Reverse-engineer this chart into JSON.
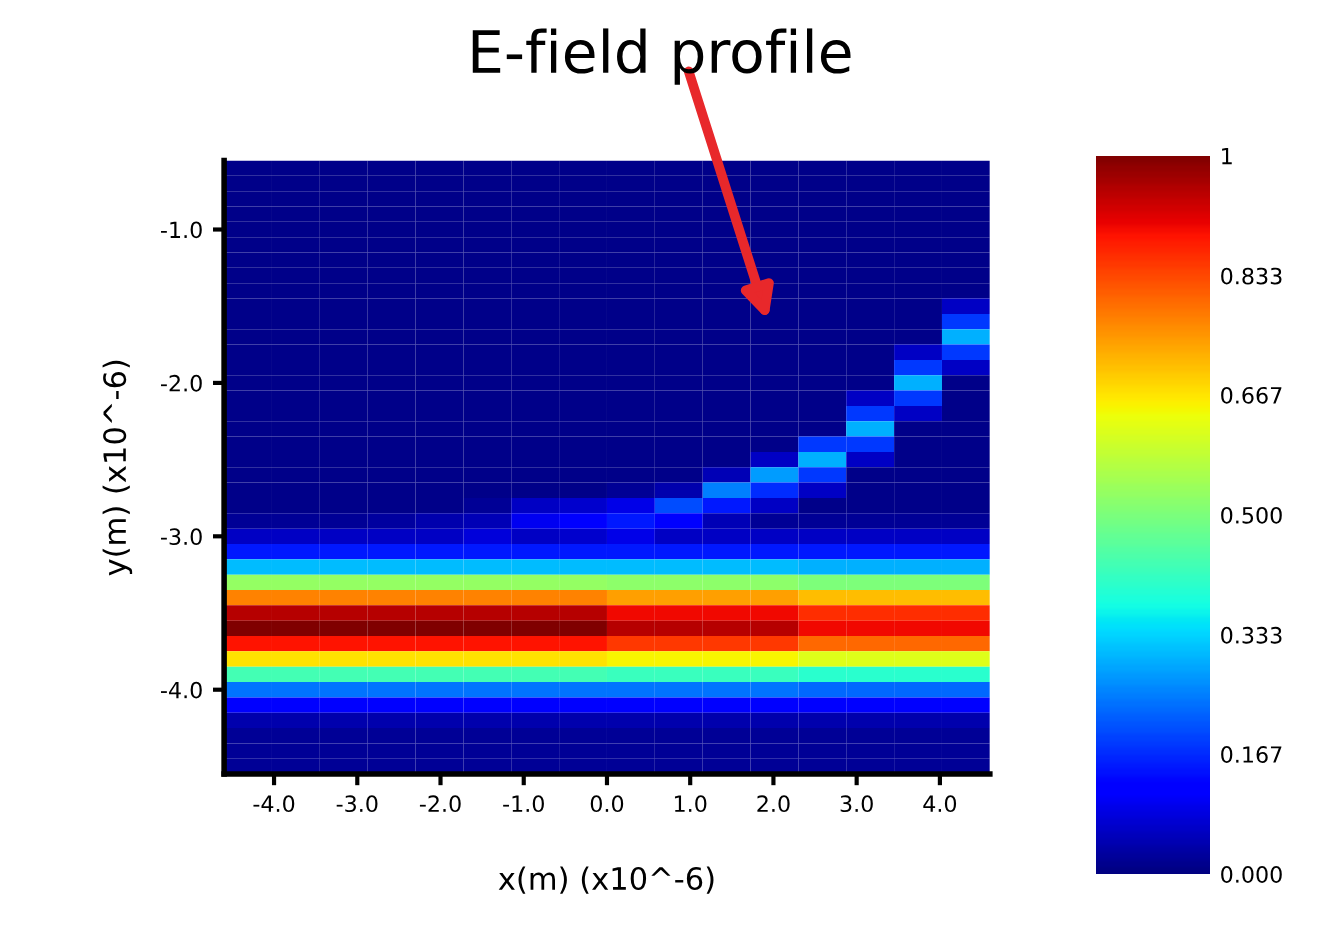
{
  "chart_data": {
    "type": "heatmap",
    "xlabel": "x(m) (x10^-6)",
    "ylabel": "y(m) (x10^-6)",
    "xlim": [
      -4.6,
      4.6
    ],
    "ylim": [
      -4.55,
      -0.55
    ],
    "xticks": [
      {
        "value": -4.0,
        "label": "-4.0"
      },
      {
        "value": -3.0,
        "label": "-3.0"
      },
      {
        "value": -2.0,
        "label": "-2.0"
      },
      {
        "value": -1.0,
        "label": "-1.0"
      },
      {
        "value": 0.0,
        "label": "0.0"
      },
      {
        "value": 1.0,
        "label": "1.0"
      },
      {
        "value": 2.0,
        "label": "2.0"
      },
      {
        "value": 3.0,
        "label": "3.0"
      },
      {
        "value": 4.0,
        "label": "4.0"
      }
    ],
    "yticks": [
      {
        "value": -1.0,
        "label": "-1.0"
      },
      {
        "value": -2.0,
        "label": "-2.0"
      },
      {
        "value": -3.0,
        "label": "-3.0"
      },
      {
        "value": -4.0,
        "label": "-4.0"
      }
    ],
    "clim": [
      0,
      1
    ],
    "cticks": [
      {
        "value": 0,
        "label": "0.000"
      },
      {
        "value": 0.167,
        "label": "0.167"
      },
      {
        "value": 0.333,
        "label": "0.333"
      },
      {
        "value": 0.5,
        "label": "0.500"
      },
      {
        "value": 0.667,
        "label": "0.667"
      },
      {
        "value": 0.833,
        "label": "0.833"
      },
      {
        "value": 1,
        "label": "1"
      }
    ],
    "annotations": [
      "E-field profile"
    ],
    "cells": [
      [
        0.01,
        0.01,
        0.01,
        0.01,
        0.01,
        0.01,
        0.01,
        0.01,
        0.01,
        0.01,
        0.01,
        0.01,
        0.01,
        0.01,
        0.01,
        0.01
      ],
      [
        0.01,
        0.01,
        0.01,
        0.01,
        0.01,
        0.01,
        0.01,
        0.01,
        0.01,
        0.01,
        0.01,
        0.01,
        0.01,
        0.01,
        0.01,
        0.01
      ],
      [
        0.01,
        0.01,
        0.01,
        0.01,
        0.01,
        0.01,
        0.01,
        0.01,
        0.01,
        0.01,
        0.01,
        0.01,
        0.01,
        0.01,
        0.01,
        0.01
      ],
      [
        0.01,
        0.01,
        0.01,
        0.01,
        0.01,
        0.01,
        0.01,
        0.01,
        0.01,
        0.01,
        0.01,
        0.01,
        0.01,
        0.01,
        0.01,
        0.01
      ],
      [
        0.01,
        0.01,
        0.01,
        0.01,
        0.01,
        0.01,
        0.01,
        0.01,
        0.01,
        0.01,
        0.01,
        0.01,
        0.01,
        0.01,
        0.01,
        0.01
      ],
      [
        0.01,
        0.01,
        0.01,
        0.01,
        0.01,
        0.01,
        0.01,
        0.01,
        0.01,
        0.01,
        0.01,
        0.01,
        0.01,
        0.01,
        0.01,
        0.01
      ],
      [
        0.01,
        0.01,
        0.01,
        0.01,
        0.01,
        0.01,
        0.01,
        0.01,
        0.01,
        0.01,
        0.01,
        0.01,
        0.01,
        0.01,
        0.01,
        0.01
      ],
      [
        0.01,
        0.01,
        0.01,
        0.01,
        0.01,
        0.01,
        0.01,
        0.01,
        0.01,
        0.01,
        0.01,
        0.01,
        0.01,
        0.01,
        0.01,
        0.01
      ],
      [
        0.01,
        0.01,
        0.01,
        0.01,
        0.01,
        0.01,
        0.01,
        0.01,
        0.01,
        0.01,
        0.01,
        0.01,
        0.01,
        0.01,
        0.01,
        0.01
      ],
      [
        0.01,
        0.01,
        0.01,
        0.01,
        0.01,
        0.01,
        0.01,
        0.01,
        0.01,
        0.01,
        0.01,
        0.01,
        0.01,
        0.01,
        0.01,
        0.06
      ],
      [
        0.01,
        0.01,
        0.01,
        0.01,
        0.01,
        0.01,
        0.01,
        0.01,
        0.01,
        0.01,
        0.01,
        0.01,
        0.01,
        0.01,
        0.01,
        0.18
      ],
      [
        0.01,
        0.01,
        0.01,
        0.01,
        0.01,
        0.01,
        0.01,
        0.01,
        0.01,
        0.01,
        0.01,
        0.01,
        0.01,
        0.01,
        0.01,
        0.3
      ],
      [
        0.01,
        0.01,
        0.01,
        0.01,
        0.01,
        0.01,
        0.01,
        0.01,
        0.01,
        0.01,
        0.01,
        0.01,
        0.01,
        0.01,
        0.06,
        0.18
      ],
      [
        0.01,
        0.01,
        0.01,
        0.01,
        0.01,
        0.01,
        0.01,
        0.01,
        0.01,
        0.01,
        0.01,
        0.01,
        0.01,
        0.01,
        0.18,
        0.06
      ],
      [
        0.01,
        0.01,
        0.01,
        0.01,
        0.01,
        0.01,
        0.01,
        0.01,
        0.01,
        0.01,
        0.01,
        0.01,
        0.01,
        0.01,
        0.3,
        0.01
      ],
      [
        0.01,
        0.01,
        0.01,
        0.01,
        0.01,
        0.01,
        0.01,
        0.01,
        0.01,
        0.01,
        0.01,
        0.01,
        0.01,
        0.06,
        0.18,
        0.01
      ],
      [
        0.01,
        0.01,
        0.01,
        0.01,
        0.01,
        0.01,
        0.01,
        0.01,
        0.01,
        0.01,
        0.01,
        0.01,
        0.01,
        0.18,
        0.06,
        0.01
      ],
      [
        0.01,
        0.01,
        0.01,
        0.01,
        0.01,
        0.01,
        0.01,
        0.01,
        0.01,
        0.01,
        0.01,
        0.01,
        0.01,
        0.3,
        0.01,
        0.01
      ],
      [
        0.01,
        0.01,
        0.01,
        0.01,
        0.01,
        0.01,
        0.01,
        0.01,
        0.01,
        0.01,
        0.01,
        0.01,
        0.18,
        0.18,
        0.01,
        0.01
      ],
      [
        0.01,
        0.01,
        0.01,
        0.01,
        0.01,
        0.01,
        0.01,
        0.01,
        0.01,
        0.01,
        0.01,
        0.06,
        0.3,
        0.06,
        0.01,
        0.01
      ],
      [
        0.01,
        0.01,
        0.01,
        0.01,
        0.01,
        0.01,
        0.01,
        0.01,
        0.01,
        0.01,
        0.05,
        0.28,
        0.18,
        0.01,
        0.01,
        0.01
      ],
      [
        0.01,
        0.01,
        0.01,
        0.01,
        0.01,
        0.01,
        0.01,
        0.01,
        0.02,
        0.04,
        0.25,
        0.17,
        0.06,
        0.01,
        0.01,
        0.01
      ],
      [
        0.01,
        0.01,
        0.01,
        0.01,
        0.01,
        0.02,
        0.06,
        0.07,
        0.09,
        0.2,
        0.15,
        0.06,
        0.01,
        0.01,
        0.01,
        0.01
      ],
      [
        0.02,
        0.02,
        0.02,
        0.03,
        0.04,
        0.05,
        0.1,
        0.12,
        0.15,
        0.12,
        0.05,
        0.02,
        0.02,
        0.02,
        0.02,
        0.02
      ],
      [
        0.06,
        0.06,
        0.06,
        0.06,
        0.06,
        0.08,
        0.06,
        0.07,
        0.09,
        0.06,
        0.06,
        0.06,
        0.06,
        0.06,
        0.06,
        0.06
      ],
      [
        0.15,
        0.15,
        0.15,
        0.15,
        0.15,
        0.15,
        0.15,
        0.15,
        0.15,
        0.15,
        0.15,
        0.15,
        0.15,
        0.15,
        0.15,
        0.15
      ],
      [
        0.31,
        0.31,
        0.31,
        0.31,
        0.31,
        0.31,
        0.31,
        0.31,
        0.31,
        0.31,
        0.31,
        0.31,
        0.3,
        0.3,
        0.3,
        0.3
      ],
      [
        0.53,
        0.53,
        0.53,
        0.53,
        0.53,
        0.53,
        0.53,
        0.53,
        0.52,
        0.52,
        0.52,
        0.52,
        0.5,
        0.5,
        0.5,
        0.5
      ],
      [
        0.77,
        0.77,
        0.77,
        0.77,
        0.77,
        0.77,
        0.77,
        0.77,
        0.74,
        0.74,
        0.74,
        0.74,
        0.71,
        0.71,
        0.71,
        0.71
      ],
      [
        0.95,
        0.95,
        0.95,
        0.95,
        0.95,
        0.95,
        0.95,
        0.95,
        0.9,
        0.9,
        0.9,
        0.9,
        0.86,
        0.86,
        0.86,
        0.86
      ],
      [
        1.0,
        1.0,
        1.0,
        1.0,
        1.0,
        1.0,
        1.0,
        1.0,
        0.95,
        0.95,
        0.95,
        0.95,
        0.9,
        0.9,
        0.9,
        0.9
      ],
      [
        0.89,
        0.89,
        0.89,
        0.89,
        0.89,
        0.89,
        0.89,
        0.89,
        0.85,
        0.85,
        0.85,
        0.85,
        0.8,
        0.8,
        0.8,
        0.8
      ],
      [
        0.67,
        0.67,
        0.67,
        0.67,
        0.67,
        0.67,
        0.67,
        0.67,
        0.65,
        0.65,
        0.65,
        0.65,
        0.62,
        0.62,
        0.62,
        0.62
      ],
      [
        0.43,
        0.43,
        0.43,
        0.43,
        0.43,
        0.43,
        0.43,
        0.43,
        0.42,
        0.42,
        0.42,
        0.42,
        0.4,
        0.4,
        0.4,
        0.4
      ],
      [
        0.24,
        0.24,
        0.24,
        0.24,
        0.24,
        0.24,
        0.24,
        0.24,
        0.24,
        0.24,
        0.24,
        0.24,
        0.23,
        0.23,
        0.23,
        0.23
      ],
      [
        0.11,
        0.11,
        0.11,
        0.11,
        0.11,
        0.11,
        0.11,
        0.11,
        0.11,
        0.11,
        0.11,
        0.11,
        0.11,
        0.11,
        0.11,
        0.11
      ],
      [
        0.04,
        0.04,
        0.04,
        0.04,
        0.04,
        0.04,
        0.04,
        0.04,
        0.04,
        0.04,
        0.04,
        0.04,
        0.04,
        0.04,
        0.04,
        0.04
      ],
      [
        0.02,
        0.02,
        0.02,
        0.02,
        0.02,
        0.02,
        0.02,
        0.02,
        0.02,
        0.02,
        0.02,
        0.02,
        0.02,
        0.02,
        0.02,
        0.02
      ],
      [
        0.02,
        0.02,
        0.02,
        0.02,
        0.02,
        0.02,
        0.02,
        0.02,
        0.02,
        0.02,
        0.02,
        0.02,
        0.02,
        0.02,
        0.02,
        0.02
      ],
      [
        0.02,
        0.02,
        0.02,
        0.02,
        0.02,
        0.02,
        0.02,
        0.02,
        0.02,
        0.02,
        0.02,
        0.02,
        0.02,
        0.02,
        0.02,
        0.02
      ]
    ]
  }
}
